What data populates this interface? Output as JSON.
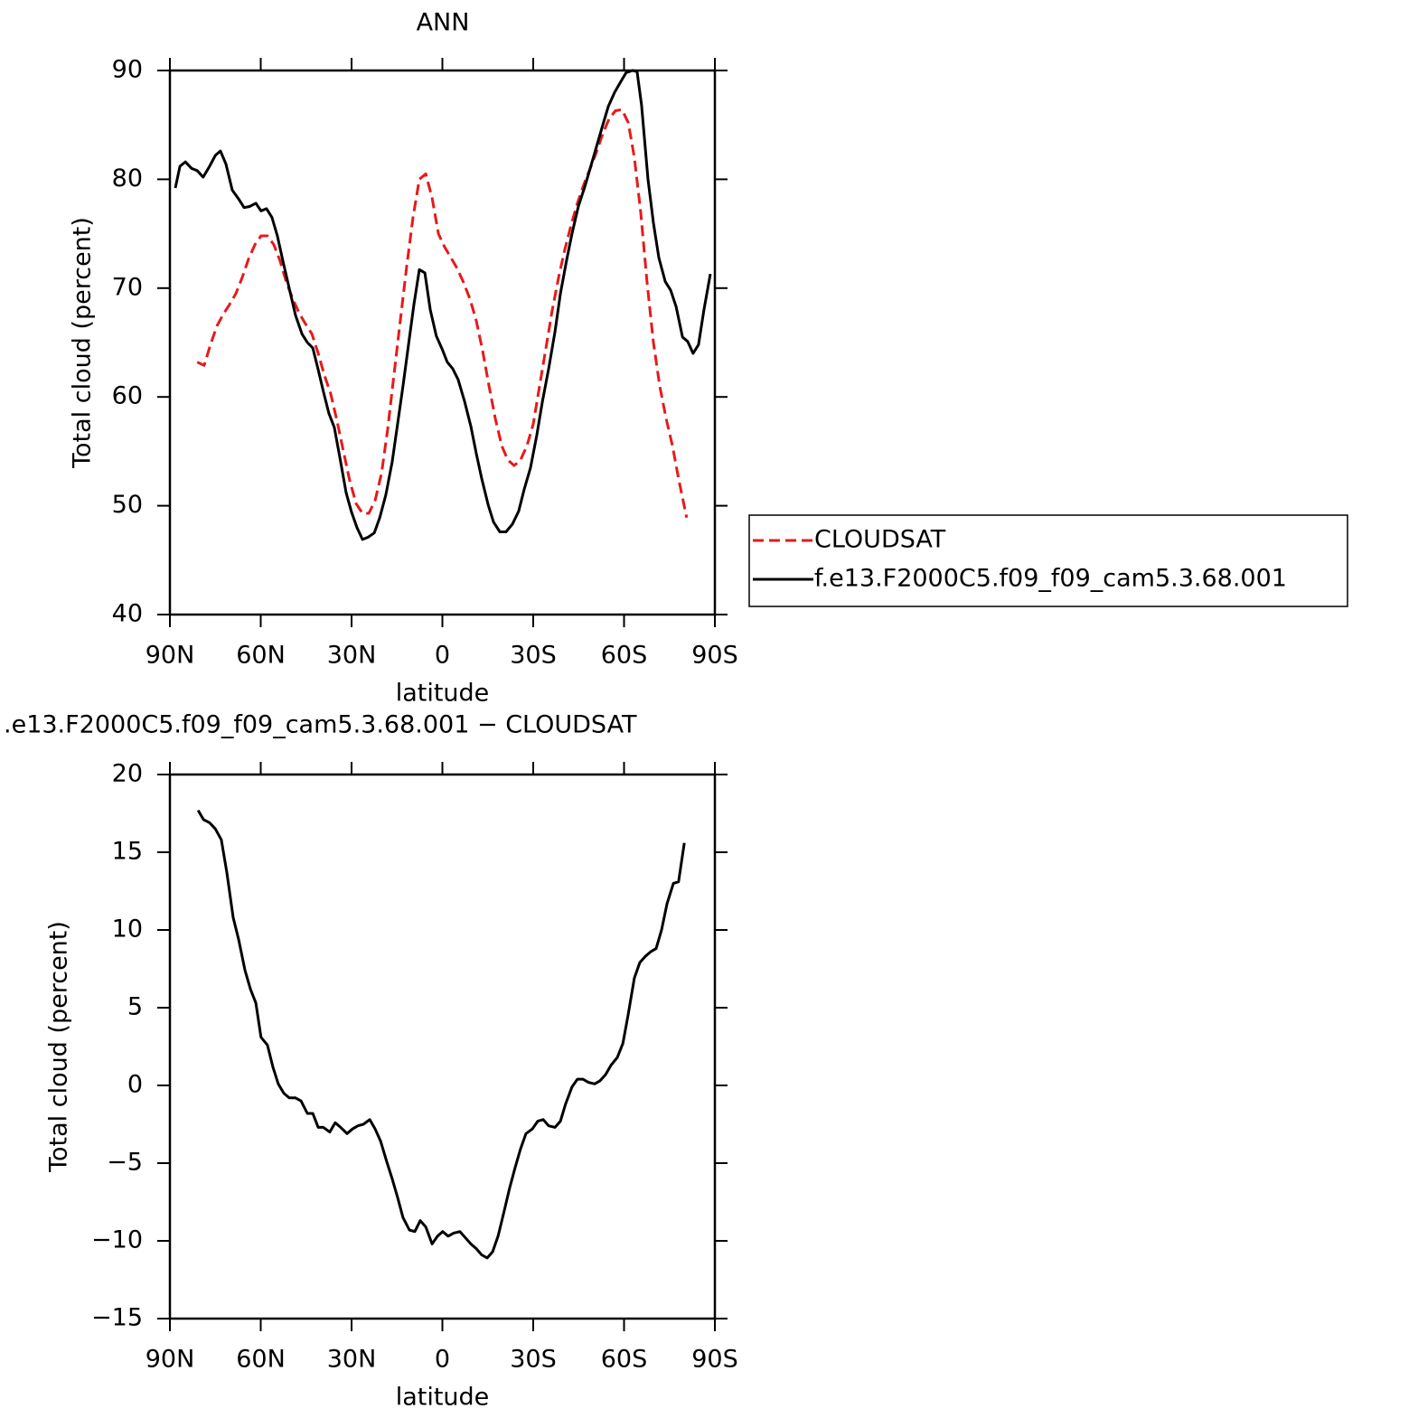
{
  "chart_data": [
    {
      "type": "line",
      "title": "ANN",
      "ylabel": "Total cloud (percent)",
      "xlabel": "latitude",
      "xlim": [
        90,
        -90
      ],
      "xticks": [
        {
          "value": 90,
          "label": "90N"
        },
        {
          "value": 60,
          "label": "60N"
        },
        {
          "value": 30,
          "label": "30N"
        },
        0,
        {
          "value": -30,
          "label": "30S"
        },
        {
          "value": -60,
          "label": "60S"
        },
        {
          "value": -90,
          "label": "90S"
        }
      ],
      "ylim": [
        40,
        90
      ],
      "yticks": [
        40,
        50,
        60,
        70,
        80,
        90
      ],
      "legend": "outside-right",
      "series": [
        {
          "name": "CLOUDSAT",
          "color": "#e8191b",
          "linestyle": "dashed",
          "x": [
            81,
            78.7,
            76.6,
            74.5,
            72.4,
            70.3,
            68.2,
            66.1,
            64,
            61.9,
            59.9,
            57.8,
            55.7,
            53.6,
            51.5,
            49.4,
            47.3,
            45.2,
            43.1,
            41,
            39,
            36.9,
            34.8,
            32.7,
            30.6,
            28.5,
            26.4,
            24.3,
            22.2,
            20.1,
            18.1,
            16,
            13.9,
            11.8,
            9.7,
            7.6,
            5.5,
            3.4,
            1.3,
            -0.7,
            -2.8,
            -4.9,
            -7,
            -9.1,
            -11.2,
            -13.3,
            -15.4,
            -17.5,
            -19.6,
            -21.6,
            -23.7,
            -25.8,
            -27.9,
            -30,
            -32.1,
            -34.2,
            -36.3,
            -38.4,
            -40.4,
            -42.5,
            -44.6,
            -46.7,
            -48.8,
            -50.9,
            -53,
            -55.1,
            -57.2,
            -59.3,
            -61.4,
            -63.4,
            -65.5,
            -67.6,
            -69.7,
            -71.8,
            -73.9,
            -76,
            -78,
            -80.7
          ],
          "values": [
            63.2,
            62.9,
            64.8,
            66.5,
            67.6,
            68.5,
            69.5,
            71,
            72.7,
            74,
            74.8,
            74.8,
            74,
            72.5,
            70.5,
            69,
            67.7,
            66.7,
            65.8,
            64,
            62,
            60.3,
            57.8,
            55,
            52.3,
            50.2,
            49.3,
            49.3,
            50.5,
            53,
            57,
            62,
            67,
            72,
            76.5,
            80,
            80.5,
            78.3,
            75,
            73.8,
            72.8,
            71.8,
            70.5,
            69,
            67,
            64.2,
            61,
            58,
            55.5,
            54.2,
            53.7,
            54.2,
            55.5,
            57.5,
            61,
            64.5,
            68,
            71,
            73.5,
            75.8,
            77.8,
            79.5,
            81,
            82.5,
            84.2,
            85.6,
            86.3,
            86.4,
            85.2,
            82,
            77,
            70.5,
            65,
            61,
            58,
            55.5,
            52.5,
            48.9
          ]
        },
        {
          "name": "f.e13.F2000C5.f09_f09_cam5.3.68.001",
          "color": "#000000",
          "linestyle": "solid",
          "x": [
            88.2,
            86.7,
            84.9,
            82.8,
            81,
            79,
            76.9,
            75,
            73.3,
            71.5,
            69.4,
            67.3,
            65.5,
            63.7,
            61.6,
            59.9,
            58.1,
            56.3,
            54.5,
            52.7,
            50.6,
            48.5,
            46.4,
            44.6,
            42.8,
            41,
            39.3,
            37.5,
            35.7,
            33.9,
            31.8,
            30,
            28.2,
            26.4,
            24.6,
            22.5,
            20.7,
            18.7,
            16.6,
            14.8,
            13,
            11.2,
            9.4,
            7.6,
            5.8,
            4,
            2,
            0.1,
            -1.6,
            -3.4,
            -5.2,
            -7.3,
            -9.4,
            -11.2,
            -13,
            -15.1,
            -16.9,
            -19,
            -21,
            -23.1,
            -25.2,
            -27,
            -29.1,
            -31.2,
            -33,
            -35.1,
            -37.2,
            -39,
            -41,
            -42.8,
            -44.9,
            -47,
            -48.8,
            -50.9,
            -53,
            -54.8,
            -56.9,
            -59,
            -60.7,
            -62.8,
            -64.3,
            -65.8,
            -67.9,
            -69.7,
            -71.5,
            -73.6,
            -75.4,
            -77.2,
            -79.3,
            -81,
            -82.8,
            -84.6,
            -86.4,
            -88.5
          ],
          "values": [
            79.2,
            81.2,
            81.6,
            81,
            80.8,
            80.2,
            81.2,
            82.2,
            82.6,
            81.4,
            79,
            78.2,
            77.4,
            77.5,
            77.8,
            77.1,
            77.3,
            76.5,
            74.8,
            72.5,
            70,
            67.5,
            65.8,
            65,
            64.5,
            62.5,
            60.5,
            58.5,
            57.2,
            54.5,
            51.2,
            49.4,
            48,
            46.9,
            47.1,
            47.5,
            48.9,
            51,
            54,
            57.5,
            61,
            64.8,
            68.5,
            71.7,
            71.4,
            68,
            65.6,
            64.4,
            63.2,
            62.6,
            61.6,
            59.6,
            57.3,
            54.8,
            52.5,
            50.1,
            48.5,
            47.6,
            47.6,
            48.3,
            49.5,
            51.5,
            53.5,
            56.5,
            59.5,
            62.6,
            66,
            69.5,
            72.5,
            75,
            77.5,
            79.3,
            81,
            83,
            85,
            86.7,
            88,
            89,
            89.8,
            90,
            89.9,
            86.8,
            80,
            76,
            72.8,
            70.6,
            69.8,
            68.3,
            65.5,
            65.1,
            64,
            64.8,
            68,
            71.3
          ]
        }
      ]
    },
    {
      "type": "line",
      "title": ".e13.F2000C5.f09_f09_cam5.3.68.001 − CLOUDSAT",
      "ylabel": "Total cloud (percent)",
      "xlabel": "latitude",
      "xlim": [
        90,
        -90
      ],
      "xticks": [
        {
          "value": 90,
          "label": "90N"
        },
        {
          "value": 60,
          "label": "60N"
        },
        {
          "value": 30,
          "label": "30N"
        },
        0,
        {
          "value": -30,
          "label": "30S"
        },
        {
          "value": -60,
          "label": "60S"
        },
        {
          "value": -90,
          "label": "90S"
        }
      ],
      "ylim": [
        -15,
        20
      ],
      "yticks": [
        {
          "value": -15,
          "label": "−15"
        },
        {
          "value": -10,
          "label": "−10"
        },
        {
          "value": -5,
          "label": "−5"
        },
        0,
        5,
        10,
        15,
        20
      ],
      "series": [
        {
          "color": "#000000",
          "linestyle": "solid",
          "x": [
            80.7,
            78.9,
            76.9,
            75,
            73,
            71.2,
            69.1,
            67.3,
            65.2,
            63.4,
            61.6,
            59.9,
            57.8,
            56,
            54.2,
            52.4,
            50.6,
            48.5,
            46.7,
            44.6,
            42.8,
            41,
            39.3,
            37.2,
            35.4,
            33.6,
            31.5,
            29.7,
            27.9,
            26.1,
            24,
            22.2,
            20.4,
            18.4,
            16.6,
            14.8,
            13,
            10.9,
            9.1,
            7.3,
            5.5,
            3.4,
            1.6,
            -0.1,
            -1.9,
            -3.7,
            -5.8,
            -7.6,
            -9.4,
            -11.2,
            -13,
            -14.8,
            -16.6,
            -18.4,
            -20.4,
            -22.2,
            -24,
            -25.8,
            -27.6,
            -29.7,
            -31.5,
            -33.3,
            -35.1,
            -37.2,
            -39,
            -40.7,
            -42.8,
            -44.6,
            -46.4,
            -48.2,
            -50.3,
            -52.1,
            -53.9,
            -55.7,
            -57.8,
            -59.6,
            -61.3,
            -63.4,
            -65.2,
            -67,
            -68.8,
            -70.6,
            -72.4,
            -74.2,
            -76.3,
            -78,
            -79.9
          ],
          "values": [
            17.7,
            17.1,
            16.9,
            16.5,
            15.8,
            13.7,
            10.8,
            9.4,
            7.4,
            6.2,
            5.3,
            3.1,
            2.6,
            1.2,
            0.1,
            -0.5,
            -0.8,
            -0.8,
            -1,
            -1.8,
            -1.8,
            -2.7,
            -2.7,
            -3,
            -2.4,
            -2.7,
            -3.1,
            -2.8,
            -2.6,
            -2.5,
            -2.2,
            -2.8,
            -3.6,
            -4.9,
            -6,
            -7.2,
            -8.5,
            -9.3,
            -9.4,
            -8.7,
            -9.1,
            -10.2,
            -9.7,
            -9.4,
            -9.7,
            -9.5,
            -9.4,
            -9.8,
            -10.2,
            -10.5,
            -10.9,
            -11.1,
            -10.7,
            -9.7,
            -8.1,
            -6.6,
            -5.3,
            -4.1,
            -3.1,
            -2.8,
            -2.3,
            -2.2,
            -2.6,
            -2.7,
            -2.3,
            -1.2,
            -0.1,
            0.4,
            0.4,
            0.2,
            0.1,
            0.3,
            0.7,
            1.3,
            1.8,
            2.7,
            4.5,
            6.9,
            7.9,
            8.3,
            8.6,
            8.8,
            10,
            11.7,
            13,
            13.1,
            15.6
          ]
        }
      ]
    }
  ]
}
